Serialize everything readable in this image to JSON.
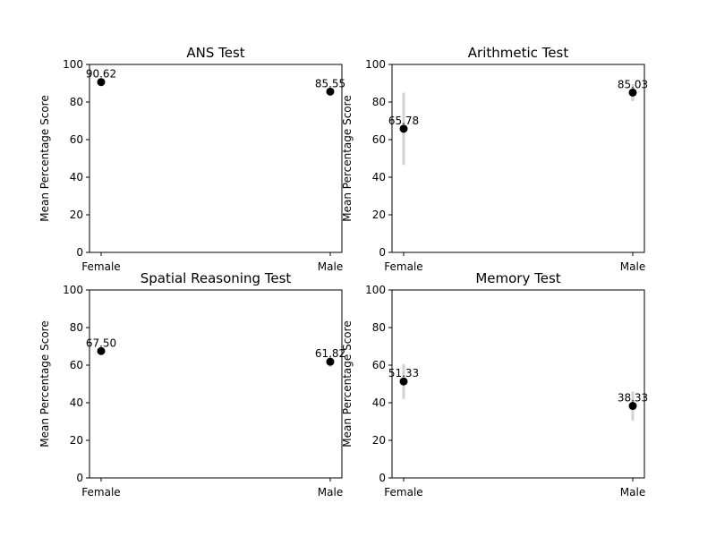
{
  "chart_data": [
    {
      "type": "scatter",
      "title": "ANS Test",
      "categories": [
        "Female",
        "Male"
      ],
      "values": [
        90.62,
        85.55
      ],
      "error": [
        [
          90.62,
          90.62
        ],
        [
          85.55,
          85.55
        ]
      ],
      "data_labels": [
        "90.62",
        "85.55"
      ],
      "ylabel": "Mean Percentage Score",
      "ylim": [
        0,
        100
      ],
      "yticks": [
        0,
        20,
        40,
        60,
        80,
        100
      ],
      "grid": false
    },
    {
      "type": "scatter",
      "title": "Arithmetic Test",
      "categories": [
        "Female",
        "Male"
      ],
      "values": [
        65.78,
        85.03
      ],
      "error": [
        [
          46.5,
          85.0
        ],
        [
          80.5,
          89.5
        ]
      ],
      "data_labels": [
        "65.78",
        "85.03"
      ],
      "ylabel": "Mean Percentage Score",
      "ylim": [
        0,
        100
      ],
      "yticks": [
        0,
        20,
        40,
        60,
        80,
        100
      ],
      "grid": false
    },
    {
      "type": "scatter",
      "title": "Spatial Reasoning Test",
      "categories": [
        "Female",
        "Male"
      ],
      "values": [
        67.5,
        61.82
      ],
      "error": [
        [
          67.5,
          67.5
        ],
        [
          59.0,
          64.5
        ]
      ],
      "data_labels": [
        "67.50",
        "61.82"
      ],
      "ylabel": "Mean Percentage Score",
      "ylim": [
        0,
        100
      ],
      "yticks": [
        0,
        20,
        40,
        60,
        80,
        100
      ],
      "grid": false
    },
    {
      "type": "scatter",
      "title": "Memory Test",
      "categories": [
        "Female",
        "Male"
      ],
      "values": [
        51.33,
        38.33
      ],
      "error": [
        [
          42.0,
          60.5
        ],
        [
          30.5,
          46.0
        ]
      ],
      "data_labels": [
        "51.33",
        "38.33"
      ],
      "ylabel": "Mean Percentage Score",
      "ylim": [
        0,
        100
      ],
      "yticks": [
        0,
        20,
        40,
        60,
        80,
        100
      ],
      "grid": false
    }
  ],
  "colors": {
    "point": "#000000",
    "errorbar": "#d3d3d3",
    "background": "#ffffff"
  }
}
